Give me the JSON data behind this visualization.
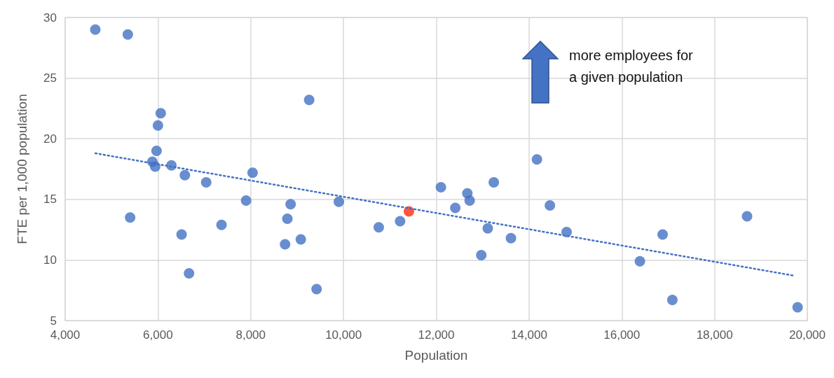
{
  "chart_data": {
    "type": "scatter",
    "xlabel": "Population",
    "ylabel": "FTE per 1,000 population",
    "xlim": [
      4000,
      20000
    ],
    "xticks": [
      {
        "value": 4000,
        "label": "4,000"
      },
      {
        "value": 6000,
        "label": "6,000"
      },
      {
        "value": 8000,
        "label": "8,000"
      },
      {
        "value": 10000,
        "label": "10,000"
      },
      {
        "value": 12000,
        "label": "12,000"
      },
      {
        "value": 14000,
        "label": "14,000"
      },
      {
        "value": 16000,
        "label": "16,000"
      },
      {
        "value": 18000,
        "label": "18,000"
      },
      {
        "value": 20000,
        "label": "20,000"
      }
    ],
    "ylim": [
      5,
      30
    ],
    "yticks": [
      5,
      10,
      15,
      20,
      25,
      30
    ],
    "grid": true,
    "marker": "circle",
    "series": [
      {
        "color": "#4472c4",
        "x": [
          4650,
          5350,
          5400,
          6060,
          6000,
          5970,
          5880,
          5940,
          6290,
          6580,
          7040,
          7900,
          8040,
          6510,
          7370,
          6670,
          8860,
          8790,
          9080,
          8740,
          9260,
          9420,
          9900,
          10760,
          11220,
          12100,
          12410,
          12670,
          12720,
          13240,
          13110,
          12970,
          13610,
          14170,
          14450,
          14810,
          16390,
          16880,
          17090,
          18700,
          19790
        ],
        "values": [
          29.0,
          28.6,
          13.5,
          22.1,
          21.1,
          19.0,
          18.1,
          17.7,
          17.8,
          17.0,
          16.4,
          14.9,
          17.2,
          12.1,
          12.9,
          8.9,
          14.6,
          13.4,
          11.7,
          11.3,
          23.2,
          7.6,
          14.8,
          12.7,
          13.2,
          16.0,
          14.3,
          15.5,
          14.9,
          16.4,
          12.6,
          10.4,
          11.8,
          18.3,
          14.5,
          12.3,
          9.9,
          12.1,
          6.7,
          13.6,
          6.1
        ]
      },
      {
        "color": "#ff2a0a",
        "x": [
          11410
        ],
        "values": [
          14.0
        ]
      },
      {
        "type": "line",
        "color": "#4472c4",
        "line_style": "dotted",
        "marker": "none",
        "x": [
          4650,
          19720
        ],
        "values": [
          18.8,
          8.7
        ]
      }
    ],
    "annotations": [
      "more employees for\na given population"
    ]
  }
}
